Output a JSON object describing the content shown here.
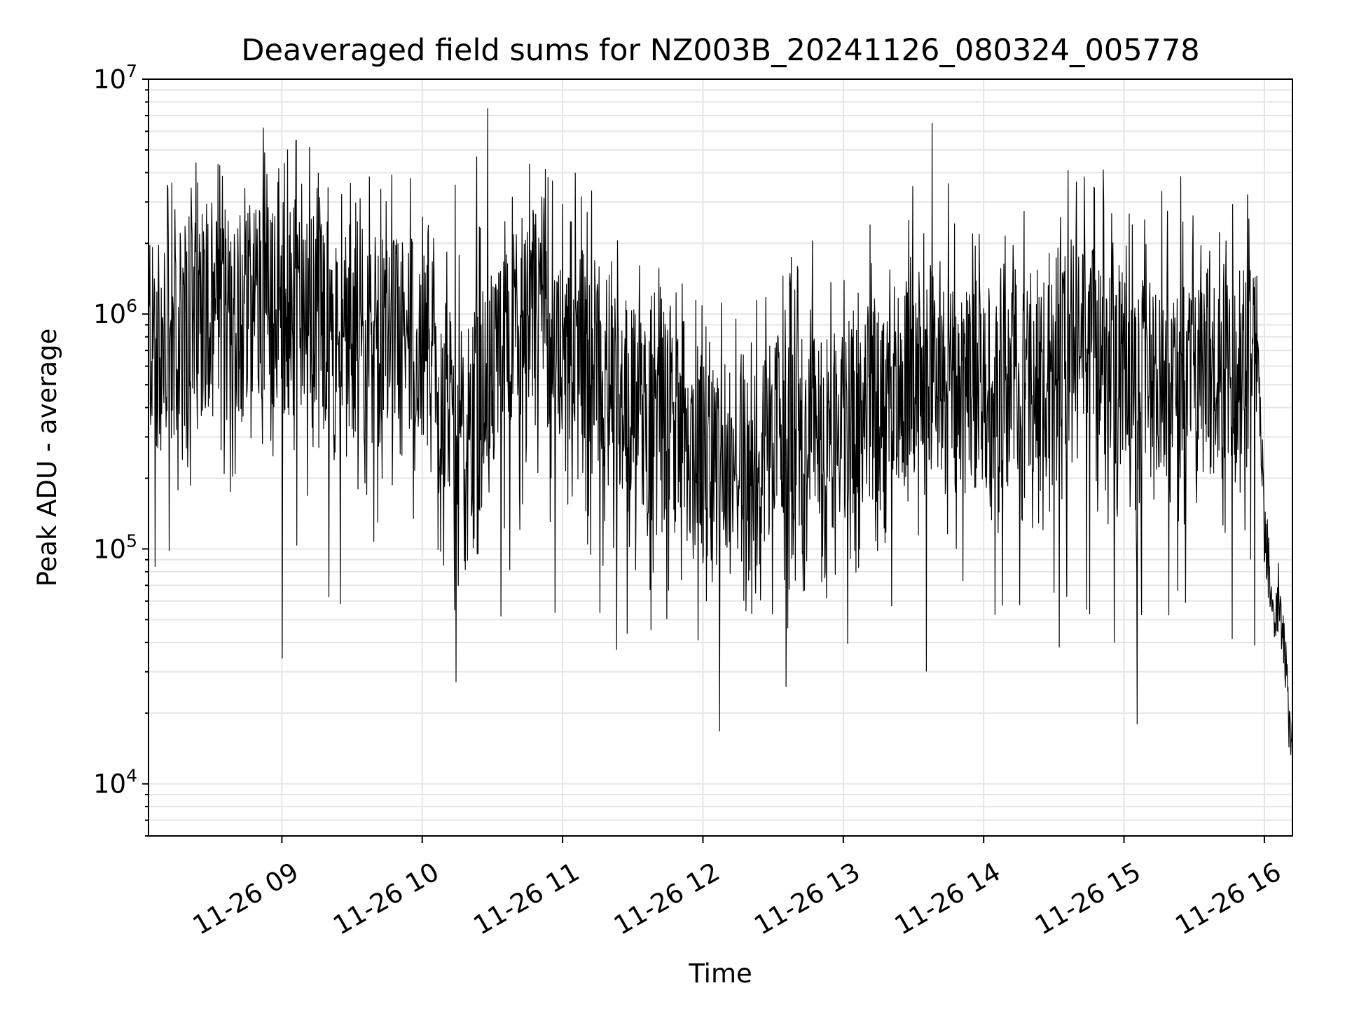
{
  "chart_data": {
    "type": "line",
    "title": "Deaveraged field sums for NZ003B_20241126_080324_005778",
    "xlabel": "Time",
    "ylabel": "Peak ADU - average",
    "yscale": "log",
    "ylim": [
      6000,
      10000000
    ],
    "xlim": [
      "2024-11-26 08:03",
      "2024-11-26 16:12"
    ],
    "grid": true,
    "line_color": "#000000",
    "grid_color": "#e5e5e5",
    "x_tick_labels": [
      "11-26 09",
      "11-26 10",
      "11-26 11",
      "11-26 12",
      "11-26 13",
      "11-26 14",
      "11-26 15",
      "11-26 16"
    ],
    "x_tick_times": [
      "2024-11-26 09:00",
      "2024-11-26 10:00",
      "2024-11-26 11:00",
      "2024-11-26 12:00",
      "2024-11-26 13:00",
      "2024-11-26 14:00",
      "2024-11-26 15:00",
      "2024-11-26 16:00"
    ],
    "y_ticks": [
      {
        "value": 10000,
        "base": "10",
        "exp": "4"
      },
      {
        "value": 100000,
        "base": "10",
        "exp": "5"
      },
      {
        "value": 1000000,
        "base": "10",
        "exp": "6"
      },
      {
        "value": 10000000,
        "base": "10",
        "exp": "7"
      }
    ],
    "series": [
      {
        "x": [
          "2024-11-26 08:03",
          "2024-11-26 08:10",
          "2024-11-26 08:20",
          "2024-11-26 08:30",
          "2024-11-26 08:40",
          "2024-11-26 08:50",
          "2024-11-26 09:00",
          "2024-11-26 09:10",
          "2024-11-26 09:20",
          "2024-11-26 09:30",
          "2024-11-26 09:40",
          "2024-11-26 09:50",
          "2024-11-26 10:00",
          "2024-11-26 10:10",
          "2024-11-26 10:20",
          "2024-11-26 10:30",
          "2024-11-26 10:40",
          "2024-11-26 10:50",
          "2024-11-26 11:00",
          "2024-11-26 11:10",
          "2024-11-26 11:20",
          "2024-11-26 11:30",
          "2024-11-26 11:40",
          "2024-11-26 11:50",
          "2024-11-26 12:00",
          "2024-11-26 12:10",
          "2024-11-26 12:20",
          "2024-11-26 12:30",
          "2024-11-26 12:40",
          "2024-11-26 12:50",
          "2024-11-26 13:00",
          "2024-11-26 13:10",
          "2024-11-26 13:20",
          "2024-11-26 13:30",
          "2024-11-26 13:40",
          "2024-11-26 13:50",
          "2024-11-26 14:00",
          "2024-11-26 14:10",
          "2024-11-26 14:20",
          "2024-11-26 14:30",
          "2024-11-26 14:40",
          "2024-11-26 14:50",
          "2024-11-26 15:00",
          "2024-11-26 15:10",
          "2024-11-26 15:20",
          "2024-11-26 15:30",
          "2024-11-26 15:40",
          "2024-11-26 15:50",
          "2024-11-26 15:57",
          "2024-11-26 16:00",
          "2024-11-26 16:04",
          "2024-11-26 16:08",
          "2024-11-26 16:12"
        ],
        "y": [
          750000,
          700000,
          900000,
          1100000,
          1000000,
          1200000,
          1000000,
          1100000,
          800000,
          700000,
          650000,
          850000,
          700000,
          400000,
          350000,
          600000,
          900000,
          1000000,
          800000,
          700000,
          500000,
          400000,
          300000,
          350000,
          250000,
          220000,
          200000,
          300000,
          350000,
          300000,
          350000,
          400000,
          500000,
          550000,
          600000,
          450000,
          500000,
          600000,
          550000,
          700000,
          800000,
          650000,
          600000,
          500000,
          550000,
          600000,
          550000,
          600000,
          700000,
          120000,
          60000,
          45000,
          11000
        ],
        "spike_x": [
          "2024-11-26 08:52",
          "2024-11-26 10:28",
          "2024-11-26 13:38"
        ],
        "spike_y": [
          6200000,
          7500000,
          6500000
        ]
      }
    ]
  }
}
